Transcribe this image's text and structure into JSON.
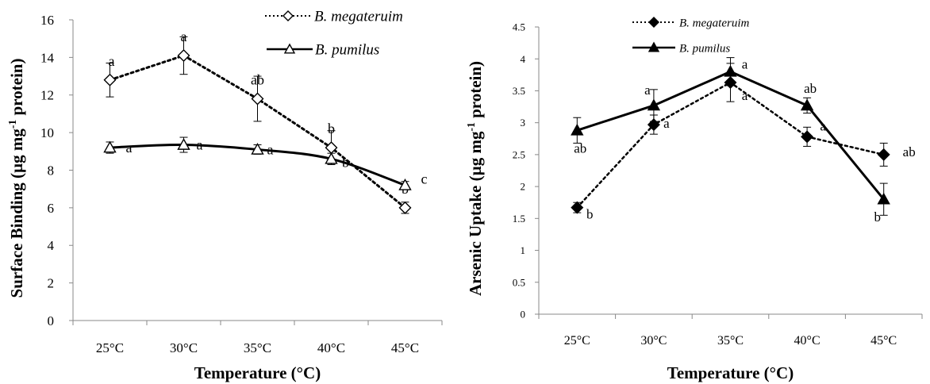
{
  "chart_data": [
    {
      "type": "line",
      "title": "",
      "xlabel": "Temperature (°C)",
      "ylabel_main": "Surface Binding (µg mg",
      "ylabel_sup": "-1",
      "ylabel_tail": " protein)",
      "categories": [
        "25°C",
        "30°C",
        "35°C",
        "40°C",
        "45°C"
      ],
      "ylim": [
        0,
        16
      ],
      "yticks": [
        "0",
        "2",
        "4",
        "6",
        "8",
        "10",
        "12",
        "14",
        "16"
      ],
      "legend_position": "top-right",
      "series": [
        {
          "name": "B. megateruim",
          "values": [
            12.8,
            14.1,
            11.8,
            9.2,
            6.0
          ],
          "errors": [
            0.9,
            1.0,
            1.2,
            0.9,
            0.3
          ],
          "labels": [
            "a",
            "a",
            "ab",
            "b",
            "b"
          ],
          "line_style": "dotted",
          "marker": "open-diamond",
          "color": "#000000"
        },
        {
          "name": "B. pumilus",
          "values": [
            9.2,
            9.35,
            9.1,
            8.6,
            7.2
          ],
          "errors": [
            0.3,
            0.4,
            0.25,
            0.3,
            0.2
          ],
          "labels": [
            "a",
            "a",
            "a",
            "b",
            "c"
          ],
          "line_style": "solid",
          "marker": "open-triangle",
          "color": "#000000"
        }
      ]
    },
    {
      "type": "line",
      "title": "",
      "xlabel": "Temperature (°C)",
      "ylabel_main": "Arsenic Uptake (µg mg",
      "ylabel_sup": "-1",
      "ylabel_tail": " protein)",
      "categories": [
        "25°C",
        "30°C",
        "35°C",
        "40°C",
        "45°C"
      ],
      "ylim": [
        0,
        4.5
      ],
      "yticks": [
        "0",
        "0.5",
        "1",
        "1.5",
        "2",
        "2.5",
        "3",
        "3.5",
        "4",
        "4.5"
      ],
      "legend_position": "top-left",
      "series": [
        {
          "name": "B. megateruim",
          "values": [
            1.67,
            2.97,
            3.63,
            2.78,
            2.5
          ],
          "errors": [
            0.08,
            0.15,
            0.3,
            0.15,
            0.18
          ],
          "labels": [
            "b",
            "a",
            "a",
            "a",
            "ab"
          ],
          "line_style": "dotted",
          "marker": "filled-diamond",
          "color": "#000000"
        },
        {
          "name": "B. pumilus",
          "values": [
            2.88,
            3.27,
            3.8,
            3.27,
            1.8
          ],
          "errors": [
            0.2,
            0.25,
            0.22,
            0.12,
            0.25
          ],
          "labels": [
            "ab",
            "a",
            "a",
            "ab",
            "b"
          ],
          "line_style": "solid",
          "marker": "filled-triangle",
          "color": "#000000"
        }
      ]
    }
  ]
}
